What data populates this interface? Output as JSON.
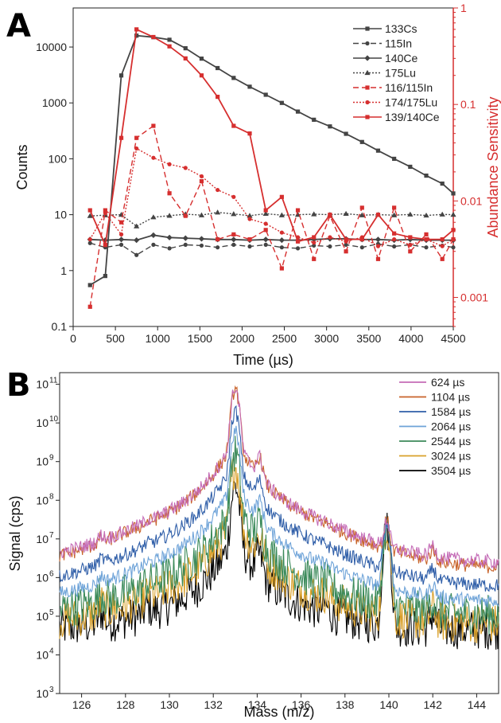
{
  "chart_data": [
    {
      "panel_label": "A",
      "type": "line",
      "xlabel": "Time (µs)",
      "ylabel_left": "Counts",
      "ylabel_right": "Abundance Sensitivity",
      "xlim": [
        0,
        4500
      ],
      "ylim_left": [
        0.1,
        50000
      ],
      "ylim_right": [
        0.0005,
        1
      ],
      "yscale": "log",
      "x_ticks": [
        "0",
        "500",
        "1000",
        "1500",
        "2000",
        "2500",
        "3000",
        "3500",
        "4000",
        "4500"
      ],
      "y_left_ticks": [
        "0.1",
        "1",
        "10",
        "100",
        "1000",
        "10000"
      ],
      "y_right_ticks": [
        "0.001",
        "0.01",
        "0.1",
        "1"
      ],
      "legend_position": "top-right",
      "colors": {
        "black_series": "#444444",
        "red_series": "#d62f2f"
      },
      "series": [
        {
          "name": "133Cs",
          "axis": "left",
          "style": "solid",
          "marker": "square",
          "color": "#444444",
          "x": [
            200,
            380,
            570,
            750,
            950,
            1140,
            1330,
            1520,
            1710,
            1900,
            2090,
            2280,
            2470,
            2660,
            2850,
            3040,
            3230,
            3420,
            3610,
            3800,
            3990,
            4180,
            4370,
            4500
          ],
          "y": [
            0.55,
            0.8,
            3100,
            16000,
            15000,
            13500,
            9500,
            6200,
            4200,
            2800,
            1950,
            1400,
            1000,
            700,
            500,
            380,
            280,
            200,
            140,
            100,
            72,
            50,
            36,
            24
          ]
        },
        {
          "name": "115In",
          "axis": "left",
          "style": "dashed",
          "marker": "circle",
          "color": "#444444",
          "x": [
            200,
            380,
            570,
            750,
            950,
            1140,
            1330,
            1520,
            1710,
            1900,
            2090,
            2280,
            2470,
            2660,
            2850,
            3040,
            3230,
            3420,
            3610,
            3800,
            3990,
            4180,
            4370,
            4500
          ],
          "y": [
            3.1,
            2.6,
            2.9,
            1.9,
            2.9,
            2.5,
            2.9,
            2.8,
            2.6,
            2.9,
            2.7,
            2.9,
            2.6,
            2.5,
            2.8,
            2.7,
            2.9,
            2.6,
            3.0,
            2.7,
            2.9,
            2.6,
            2.8,
            2.6
          ]
        },
        {
          "name": "140Ce",
          "axis": "left",
          "style": "solid",
          "marker": "diamond",
          "color": "#444444",
          "x": [
            200,
            380,
            570,
            750,
            950,
            1140,
            1330,
            1520,
            1710,
            1900,
            2090,
            2280,
            2470,
            2660,
            2850,
            3040,
            3230,
            3420,
            3610,
            3800,
            3990,
            4180,
            4370,
            4500
          ],
          "y": [
            3.6,
            3.5,
            3.6,
            3.5,
            4.3,
            3.9,
            3.8,
            3.7,
            3.6,
            3.6,
            3.5,
            3.6,
            3.5,
            3.5,
            3.6,
            3.7,
            3.7,
            3.6,
            3.6,
            3.5,
            3.6,
            3.5,
            3.5,
            3.5
          ]
        },
        {
          "name": "175Lu",
          "axis": "left",
          "style": "dotted",
          "marker": "triangle",
          "color": "#444444",
          "x": [
            200,
            380,
            570,
            750,
            950,
            1140,
            1330,
            1520,
            1710,
            1900,
            2090,
            2280,
            2470,
            2660,
            2850,
            3040,
            3230,
            3420,
            3610,
            3800,
            3990,
            4180,
            4370,
            4500
          ],
          "y": [
            9.5,
            9.8,
            10.0,
            6.2,
            9.0,
            9.6,
            10.2,
            9.8,
            11.0,
            10.3,
            9.6,
            10.4,
            9.8,
            10.0,
            10.2,
            10.0,
            10.4,
            9.8,
            10.0,
            9.8,
            10.1,
            9.7,
            10.1,
            10.0
          ]
        },
        {
          "name": "116/115In",
          "axis": "right",
          "style": "dashed",
          "marker": "square",
          "color": "#d62f2f",
          "x": [
            200,
            380,
            570,
            750,
            950,
            1140,
            1330,
            1520,
            1710,
            1900,
            2090,
            2280,
            2470,
            2660,
            2850,
            3040,
            3230,
            3420,
            3610,
            3800,
            3990,
            4180,
            4370,
            4500
          ],
          "y": [
            0.0008,
            0.008,
            0.006,
            0.045,
            0.06,
            0.012,
            0.007,
            0.016,
            0.004,
            0.0045,
            0.004,
            0.005,
            0.002,
            0.008,
            0.0025,
            0.007,
            0.003,
            0.0085,
            0.0025,
            0.0085,
            0.003,
            0.0045,
            0.0025,
            0.004
          ]
        },
        {
          "name": "174/175Lu",
          "axis": "right",
          "style": "dotted",
          "marker": "circle",
          "color": "#d62f2f",
          "x": [
            200,
            380,
            570,
            750,
            950,
            1140,
            1330,
            1520,
            1710,
            1900,
            2090,
            2280,
            2470,
            2660,
            2850,
            3040,
            3230,
            3420,
            3610,
            3800,
            3990,
            4180,
            4370,
            4500
          ],
          "y": [
            0.004,
            0.0075,
            0.0045,
            0.035,
            0.028,
            0.024,
            0.022,
            0.018,
            0.013,
            0.011,
            0.0065,
            0.0058,
            0.0047,
            0.0042,
            0.0037,
            0.0042,
            0.0038,
            0.0042,
            0.0034,
            0.004,
            0.0035,
            0.004,
            0.0034,
            0.004
          ]
        },
        {
          "name": "139/140Ce",
          "axis": "right",
          "style": "solid",
          "marker": "square",
          "color": "#d62f2f",
          "x": [
            200,
            380,
            570,
            750,
            950,
            1140,
            1330,
            1520,
            1710,
            1900,
            2090,
            2280,
            2470,
            2660,
            2850,
            3040,
            3230,
            3420,
            3610,
            3800,
            3990,
            4180,
            4370,
            4500
          ],
          "y": [
            0.008,
            0.0035,
            0.045,
            0.6,
            0.5,
            0.4,
            0.3,
            0.2,
            0.12,
            0.06,
            0.05,
            0.008,
            0.011,
            0.0038,
            0.0042,
            0.0072,
            0.004,
            0.004,
            0.0072,
            0.0046,
            0.0042,
            0.004,
            0.004,
            0.005
          ]
        }
      ]
    },
    {
      "panel_label": "B",
      "type": "line",
      "xlabel": "Mass (m/z)",
      "ylabel": "Signal (cps)",
      "xlim": [
        125,
        145
      ],
      "ylim": [
        1000,
        200000000000
      ],
      "yscale": "log",
      "x_ticks": [
        "126",
        "128",
        "130",
        "132",
        "134",
        "136",
        "138",
        "140",
        "142",
        "144"
      ],
      "y_ticks_exponents": [
        3,
        4,
        5,
        6,
        7,
        8,
        9,
        10,
        11
      ],
      "y_tick_base": "10",
      "legend_position": "top-right",
      "peaks_mass": [
        126.9,
        129.0,
        130.9,
        133.0,
        134.1,
        137.1,
        139.9,
        142.0
      ],
      "series": [
        {
          "name": "624 µs",
          "color": "#c46bb6",
          "baseline": 2500000,
          "peak_133": 80000000000,
          "peak_140": 25000000
        },
        {
          "name": "1104 µs",
          "color": "#c8632a",
          "baseline": 1800000,
          "peak_133": 75000000000,
          "peak_140": 25000000
        },
        {
          "name": "1584 µs",
          "color": "#2f5ea8",
          "baseline": 600000,
          "peak_133": 20000000000,
          "peak_140": 25000000
        },
        {
          "name": "2064 µs",
          "color": "#6ea3d8",
          "baseline": 250000,
          "peak_133": 6000000000,
          "peak_140": 24000000
        },
        {
          "name": "2544 µs",
          "color": "#3b8a5a",
          "baseline": 120000,
          "peak_133": 1800000000,
          "peak_140": 22000000
        },
        {
          "name": "3024 µs",
          "color": "#d9a02a",
          "baseline": 70000,
          "peak_133": 800000000,
          "peak_140": 22000000
        },
        {
          "name": "3504 µs",
          "color": "#000000",
          "baseline": 50000,
          "peak_133": 250000000,
          "peak_140": 20000000
        }
      ]
    }
  ]
}
